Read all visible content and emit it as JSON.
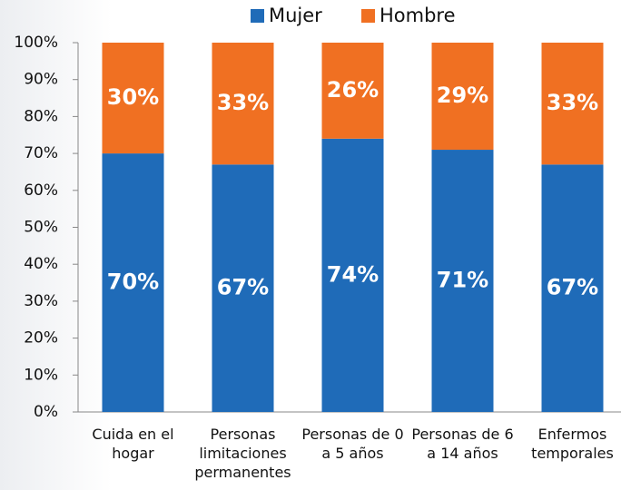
{
  "chart_data": {
    "type": "stacked_bar",
    "categories": [
      "Cuida en el hogar",
      "Personas limitaciones permanentes",
      "Personas de 0 a 5 años",
      "Personas de 6 a 14 años",
      "Enfermos temporales"
    ],
    "series": [
      {
        "name": "Mujer",
        "color": "#1f6bb8",
        "values": [
          70,
          67,
          74,
          71,
          67
        ],
        "value_labels": [
          "70%",
          "67%",
          "74%",
          "71%",
          "67%"
        ]
      },
      {
        "name": "Hombre",
        "color": "#f07022",
        "values": [
          30,
          33,
          26,
          29,
          33
        ],
        "value_labels": [
          "30%",
          "33%",
          "26%",
          "29%",
          "33%"
        ]
      }
    ],
    "ylim": [
      0,
      100
    ],
    "yticks": [
      {
        "value": 0,
        "label": "0%"
      },
      {
        "value": 10,
        "label": "10%"
      },
      {
        "value": 20,
        "label": "20%"
      },
      {
        "value": 30,
        "label": "30%"
      },
      {
        "value": 40,
        "label": "40%"
      },
      {
        "value": 50,
        "label": "50%"
      },
      {
        "value": 60,
        "label": "60%"
      },
      {
        "value": 70,
        "label": "70%"
      },
      {
        "value": 80,
        "label": "80%"
      },
      {
        "value": 90,
        "label": "90%"
      },
      {
        "value": 100,
        "label": "100%"
      }
    ],
    "legend": "top",
    "grid": false
  }
}
